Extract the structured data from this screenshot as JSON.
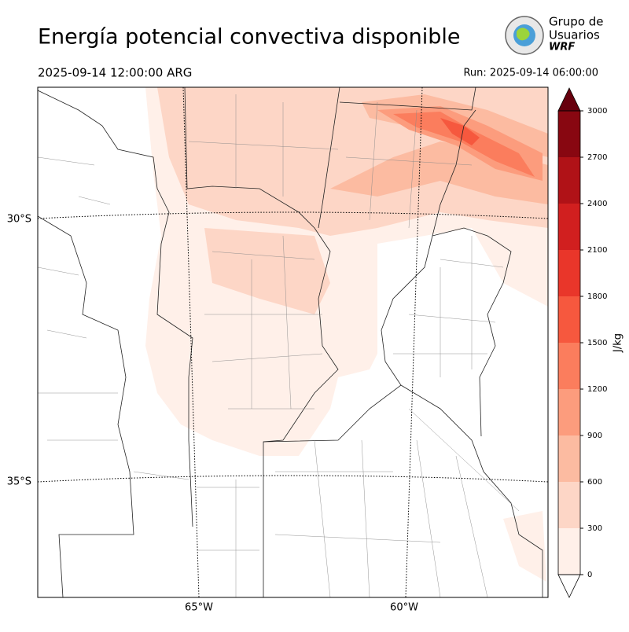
{
  "header": {
    "title": "Energía potencial convectiva disponible",
    "valid_time": "2025-09-14 12:00:00 ARG",
    "run": "Run: 2025-09-14 06:00:00"
  },
  "logo": {
    "lines": [
      "Grupo de",
      "Usuarios",
      "WRF"
    ]
  },
  "map": {
    "lat_labels": [
      "30°S",
      "35°S"
    ],
    "lon_labels": [
      "65°W",
      "60°W"
    ]
  },
  "colorbar": {
    "label": "J/kg",
    "ticks": [
      0,
      300,
      600,
      900,
      1200,
      1500,
      1800,
      2100,
      2400,
      2700,
      3000
    ],
    "colors": [
      "#fff0e9",
      "#fdd6c6",
      "#fcbba1",
      "#fc9c7d",
      "#fb7d5d",
      "#f6583e",
      "#e9362a",
      "#d11f1f",
      "#b01217",
      "#880711"
    ],
    "over_color": "#67000d",
    "under_color": "#ffffff"
  }
}
